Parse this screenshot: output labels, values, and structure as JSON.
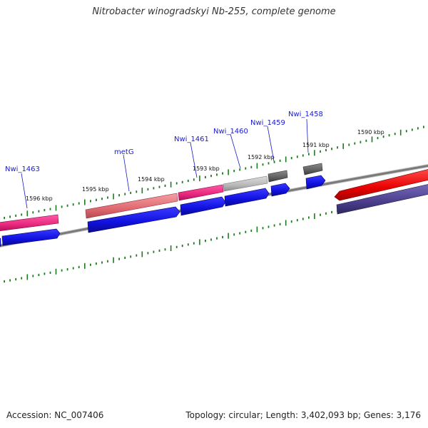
{
  "title": "Nitrobacter winogradskyi Nb-255, complete genome",
  "footer": {
    "accession": "Accession: NC_007406",
    "summary": "Topology: circular; Length: 3,402,093 bp; Genes: 3,176"
  },
  "ruler": {
    "unit": "kbp",
    "labels": [
      "1590 kbp",
      "1591 kbp",
      "1592 kbp",
      "1593 kbp",
      "1594 kbp",
      "1595 kbp",
      "1596 kbp"
    ]
  },
  "genes": [
    {
      "name": "Nwi_1458"
    },
    {
      "name": "Nwi_1459"
    },
    {
      "name": "Nwi_1460"
    },
    {
      "name": "Nwi_1461"
    },
    {
      "name": "metG"
    },
    {
      "name": "Nwi_1463"
    }
  ],
  "colors": {
    "backbone": "#7a7a7a",
    "ticks": "#1f7a1f",
    "cds_blue": "#1010e0",
    "pink": "#e8287c",
    "salmon": "#e06a72",
    "light_gray": "#b8b8b8",
    "dark_gray": "#606060",
    "red": "#e80000",
    "purple": "#4a3e8c",
    "label": "#1a1ac8"
  }
}
